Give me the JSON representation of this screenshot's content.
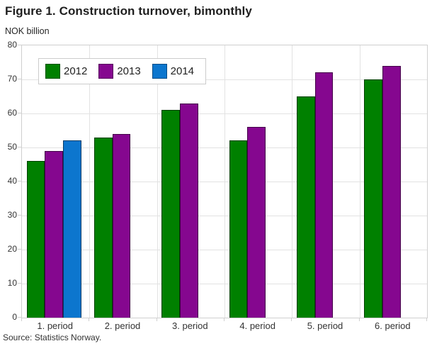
{
  "figure": {
    "title": "Figure 1. Construction turnover, bimonthly",
    "y_axis_unit_label": "NOK billion",
    "source": "Source: Statistics Norway."
  },
  "chart_data": {
    "type": "bar",
    "title": "Figure 1. Construction turnover, bimonthly",
    "ylabel": "NOK billion",
    "xlabel": "",
    "categories": [
      "1. period",
      "2. period",
      "3. period",
      "4. period",
      "5. period",
      "6. period"
    ],
    "series": [
      {
        "name": "2012",
        "color": "#008000",
        "values": [
          46,
          53,
          61,
          52,
          65,
          70
        ]
      },
      {
        "name": "2013",
        "color": "#85078F",
        "values": [
          49,
          54,
          63,
          56,
          72,
          74
        ]
      },
      {
        "name": "2014",
        "color": "#0C76CE",
        "values": [
          52,
          null,
          null,
          null,
          null,
          null
        ]
      }
    ],
    "ylim": [
      0,
      80
    ],
    "yticks": [
      0,
      10,
      20,
      30,
      40,
      50,
      60,
      70,
      80
    ],
    "grid": true,
    "legend_position": "top-left-inside",
    "bar_border_color": "rgba(0,0,0,0.5)"
  }
}
